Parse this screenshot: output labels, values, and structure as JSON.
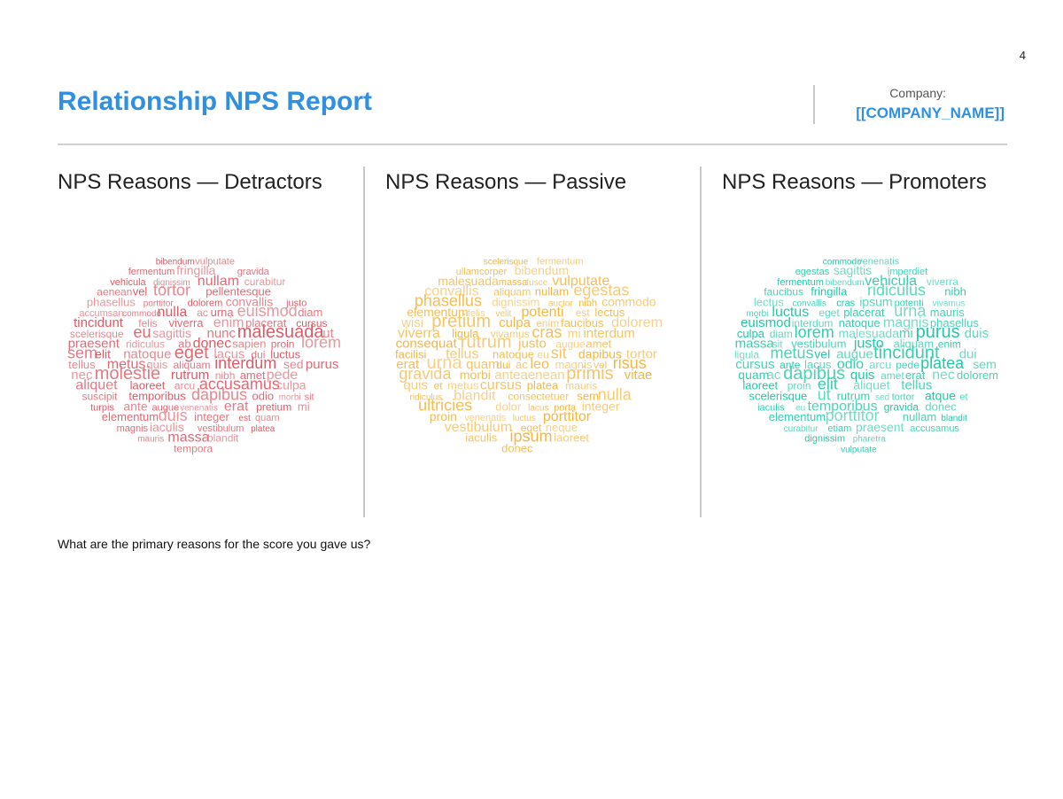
{
  "page_number": "4",
  "title": "Relationship NPS Report",
  "company": {
    "label": "Company:",
    "name": "[[COMPANY_NAME]]"
  },
  "sections": [
    {
      "title": "NPS Reasons — Detractors",
      "color": "#e05a66"
    },
    {
      "title": "NPS Reasons — Passive",
      "color": "#f5b646"
    },
    {
      "title": "NPS Reasons — Promoters",
      "color": "#22c9a6"
    }
  ],
  "question": "What are the primary reasons for the score you gave us?",
  "clouds": {
    "detractors": [
      "bibendum",
      "vulputate",
      "fermentum",
      "fringilla",
      "gravida",
      "vehicula",
      "dignissim",
      "nullam",
      "curabitur",
      "aenean",
      "vel",
      "tortor",
      "pellentesque",
      "phasellus",
      "porttitor",
      "dolorem",
      "convallis",
      "justo",
      "accumsan",
      "commodo",
      "nulla",
      "ac",
      "urna",
      "euismod",
      "diam",
      "tincidunt",
      "felis",
      "viverra",
      "enim",
      "placerat",
      "cursus",
      "scelerisque",
      "eu",
      "sagittis",
      "nunc",
      "malesuada",
      "ut",
      "praesent",
      "ridiculus",
      "ab",
      "donec",
      "sapien",
      "proin",
      "lorem",
      "sem",
      "elit",
      "natoque",
      "eget",
      "lacus",
      "dui",
      "luctus",
      "tellus",
      "metus",
      "quis",
      "aliquam",
      "interdum",
      "sed",
      "purus",
      "nec",
      "molestie",
      "rutrum",
      "nibh",
      "amet",
      "pede",
      "aliquet",
      "laoreet",
      "arcu",
      "accusamus",
      "culpa",
      "suscipit",
      "temporibus",
      "dapibus",
      "odio",
      "morbi",
      "sit",
      "turpis",
      "ante",
      "augue",
      "venenatis",
      "erat",
      "pretium",
      "mi",
      "elementum",
      "duis",
      "integer",
      "est",
      "quam",
      "magnis",
      "iaculis",
      "vestibulum",
      "platea",
      "mauris",
      "massa",
      "blandit",
      "tempora",
      "cras",
      "imperdiet",
      "dictumst",
      "ullamcorper"
    ],
    "passive": [
      "scelerisque",
      "fermentum",
      "ullamcorper",
      "bibendum",
      "malesuada",
      "massa",
      "fusce",
      "vulputate",
      "convallis",
      "aliquam",
      "nullam",
      "egestas",
      "phasellus",
      "dignissim",
      "auctor",
      "nibh",
      "commodo",
      "elementum",
      "felis",
      "velit",
      "potenti",
      "est",
      "lectus",
      "wisi",
      "pretium",
      "culpa",
      "enim",
      "faucibus",
      "dolorem",
      "viverra",
      "ligula",
      "vivamus",
      "cras",
      "mi",
      "interdum",
      "consequat",
      "rutrum",
      "justo",
      "augue",
      "amet",
      "facilisi",
      "tellus",
      "natoque",
      "eu",
      "sit",
      "dapibus",
      "tortor",
      "erat",
      "urna",
      "quam",
      "dui",
      "ac",
      "leo",
      "magnis",
      "vel",
      "risus",
      "gravida",
      "morbi",
      "anteaenean",
      "primis",
      "vitae",
      "quis",
      "et",
      "metus",
      "cursus",
      "platea",
      "mauris",
      "ridiculus",
      "blandit",
      "consectetuer",
      "sem",
      "nulla",
      "ultricies",
      "dolor",
      "lacus",
      "porta",
      "integer",
      "proin",
      "venenatis",
      "luctus",
      "porttitor",
      "vestibulum",
      "eget",
      "neque",
      "iaculis",
      "ipsum",
      "laoreet",
      "donec",
      "nonummy",
      "facilisis",
      "temporibus",
      "imperdiet",
      "suspendisse",
      "tincidunt"
    ],
    "promoters": [
      "commodo",
      "venenatis",
      "egestas",
      "sagittis",
      "imperdiet",
      "fermentum",
      "bibendum",
      "vehicula",
      "viverra",
      "faucibus",
      "fringilla",
      "ridiculus",
      "nibh",
      "lectus",
      "convallis",
      "cras",
      "ipsum",
      "potenti",
      "vivamus",
      "morbi",
      "luctus",
      "eget",
      "placerat",
      "urna",
      "mauris",
      "euismod",
      "interdum",
      "natoque",
      "magnis",
      "phasellus",
      "culpa",
      "diam",
      "lorem",
      "malesuada",
      "mi",
      "purus",
      "duis",
      "massa",
      "sit",
      "vestibulum",
      "justo",
      "aliquam",
      "enim",
      "ligula",
      "metus",
      "vel",
      "augue",
      "tincidunt",
      "dui",
      "cursus",
      "ante",
      "lacus",
      "odio",
      "arcu",
      "pede",
      "platea",
      "sem",
      "quam",
      "ac",
      "dapibus",
      "quis",
      "amet",
      "erat",
      "nec",
      "dolorem",
      "laoreet",
      "proin",
      "elit",
      "aliquet",
      "tellus",
      "scelerisque",
      "ut",
      "rutrum",
      "sed",
      "tortor",
      "atque",
      "et",
      "iaculis",
      "eu",
      "temporibus",
      "gravida",
      "donec",
      "elementum",
      "porttitor",
      "nullam",
      "blandit",
      "curabitur",
      "etiam",
      "praesent",
      "accusamus",
      "dignissim",
      "pharetra",
      "vulputate",
      "pretium",
      "aenean",
      "integer",
      "facilisi",
      "molestie",
      "tempora",
      "pellentesque"
    ]
  }
}
